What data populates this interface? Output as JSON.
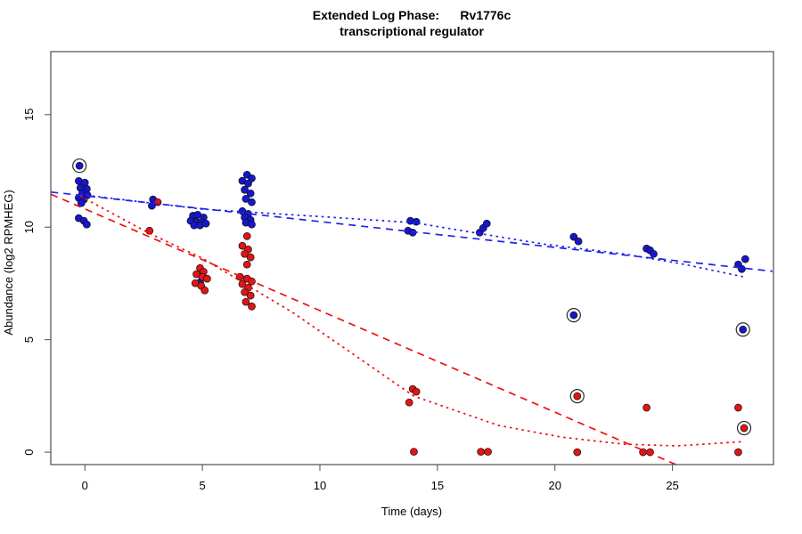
{
  "title": {
    "line1": "Extended Log Phase:      Rv1776c",
    "line2": "transcriptional regulator"
  },
  "chart_data": {
    "type": "scatter",
    "title": "Extended Log Phase: Rv1776c transcriptional regulator",
    "xlabel": "Time  (days)",
    "ylabel": "Abundance  (log2 RPMHEG)",
    "xlim": [
      -1.45,
      29.3
    ],
    "ylim": [
      -0.55,
      17.8
    ],
    "x_ticks": [
      0,
      5,
      10,
      15,
      20,
      25
    ],
    "y_ticks": [
      0,
      5,
      10,
      15
    ],
    "grid": false,
    "legend": "none",
    "colors": {
      "blue_point": "#1616cc",
      "red_point": "#e41414",
      "blue_line": "#2222ee",
      "red_line": "#ee1111",
      "outlier_ring": "#2a2a2a",
      "box": "#4d4d4d"
    },
    "series": [
      {
        "name": "blue-points",
        "marker": "filled-circle",
        "color": "#1616cc",
        "points": [
          [
            -0.26,
            12.05
          ],
          [
            0.0,
            11.98
          ],
          [
            -0.19,
            11.74
          ],
          [
            0.08,
            11.7
          ],
          [
            -0.11,
            11.5
          ],
          [
            0.11,
            11.42
          ],
          [
            -0.26,
            11.3
          ],
          [
            -0.04,
            11.23
          ],
          [
            -0.15,
            11.07
          ],
          [
            -0.26,
            10.4
          ],
          [
            -0.04,
            10.28
          ],
          [
            0.08,
            10.12
          ],
          [
            2.9,
            11.23
          ],
          [
            2.85,
            10.95
          ],
          [
            4.6,
            10.51
          ],
          [
            4.8,
            10.55
          ],
          [
            5.05,
            10.43
          ],
          [
            4.5,
            10.28
          ],
          [
            4.75,
            10.24
          ],
          [
            4.95,
            10.2
          ],
          [
            4.65,
            10.08
          ],
          [
            4.9,
            10.08
          ],
          [
            5.15,
            10.16
          ],
          [
            4.9,
            7.55
          ],
          [
            6.9,
            12.33
          ],
          [
            7.1,
            12.17
          ],
          [
            6.7,
            12.06
          ],
          [
            6.95,
            11.94
          ],
          [
            6.8,
            11.66
          ],
          [
            7.05,
            11.5
          ],
          [
            6.85,
            11.26
          ],
          [
            7.1,
            11.11
          ],
          [
            6.7,
            10.71
          ],
          [
            6.95,
            10.59
          ],
          [
            6.8,
            10.43
          ],
          [
            7.05,
            10.32
          ],
          [
            6.85,
            10.2
          ],
          [
            7.1,
            10.12
          ],
          [
            13.85,
            10.28
          ],
          [
            14.1,
            10.24
          ],
          [
            13.75,
            9.84
          ],
          [
            13.95,
            9.76
          ],
          [
            16.8,
            9.76
          ],
          [
            16.95,
            9.96
          ],
          [
            17.1,
            10.16
          ],
          [
            20.8,
            9.57
          ],
          [
            21.0,
            9.37
          ],
          [
            23.9,
            9.05
          ],
          [
            24.05,
            8.97
          ],
          [
            24.2,
            8.81
          ],
          [
            28.1,
            8.58
          ],
          [
            27.8,
            8.34
          ],
          [
            27.95,
            8.14
          ]
        ]
      },
      {
        "name": "blue-circled-outliers",
        "marker": "circled-point",
        "color": "#1616cc",
        "points": [
          [
            -0.23,
            12.73
          ],
          [
            20.8,
            6.09
          ],
          [
            28.0,
            5.45
          ]
        ]
      },
      {
        "name": "red-points",
        "marker": "filled-circle",
        "color": "#e41414",
        "points": [
          [
            3.1,
            11.11
          ],
          [
            2.75,
            9.84
          ],
          [
            4.9,
            8.18
          ],
          [
            5.05,
            8.02
          ],
          [
            4.75,
            7.91
          ],
          [
            5.0,
            7.79
          ],
          [
            5.2,
            7.71
          ],
          [
            4.7,
            7.51
          ],
          [
            4.95,
            7.39
          ],
          [
            5.1,
            7.19
          ],
          [
            6.9,
            9.6
          ],
          [
            6.7,
            9.17
          ],
          [
            6.95,
            9.01
          ],
          [
            6.8,
            8.81
          ],
          [
            7.05,
            8.66
          ],
          [
            6.9,
            8.34
          ],
          [
            6.6,
            7.79
          ],
          [
            6.9,
            7.71
          ],
          [
            7.1,
            7.59
          ],
          [
            6.7,
            7.47
          ],
          [
            6.95,
            7.31
          ],
          [
            6.8,
            7.11
          ],
          [
            7.05,
            6.96
          ],
          [
            6.85,
            6.68
          ],
          [
            7.1,
            6.48
          ],
          [
            13.95,
            2.81
          ],
          [
            14.1,
            2.69
          ],
          [
            13.8,
            2.21
          ],
          [
            14.0,
            0.02
          ],
          [
            16.85,
            0.02
          ],
          [
            17.15,
            0.02
          ],
          [
            20.95,
            0.0
          ],
          [
            23.9,
            1.98
          ],
          [
            23.75,
            0.0
          ],
          [
            24.05,
            0.0
          ],
          [
            27.8,
            1.98
          ],
          [
            27.8,
            0.0
          ]
        ]
      },
      {
        "name": "red-circled-outliers",
        "marker": "circled-point",
        "color": "#e41414",
        "points": [
          [
            20.95,
            2.49
          ],
          [
            28.05,
            1.07
          ]
        ]
      }
    ],
    "lines": [
      {
        "name": "blue-dashed-linear-fit",
        "style": "dashed",
        "color": "#2222ee",
        "points": [
          [
            -1.44,
            11.56
          ],
          [
            29.26,
            8.04
          ]
        ]
      },
      {
        "name": "blue-dotted-loess-fit",
        "style": "dotted",
        "color": "#2222ee",
        "points": [
          [
            -0.2,
            11.45
          ],
          [
            5,
            10.8
          ],
          [
            10,
            10.47
          ],
          [
            14,
            10.2
          ],
          [
            19.5,
            9.25
          ],
          [
            23,
            8.8
          ],
          [
            25.5,
            8.35
          ],
          [
            28,
            7.8
          ]
        ]
      },
      {
        "name": "red-dashed-linear-fit",
        "style": "dashed",
        "color": "#ee1111",
        "points": [
          [
            -1.44,
            11.46
          ],
          [
            25.6,
            -0.75
          ]
        ]
      },
      {
        "name": "red-dotted-loess-fit",
        "style": "dotted",
        "color": "#ee1111",
        "points": [
          [
            -0.2,
            11.38
          ],
          [
            2.75,
            9.72
          ],
          [
            5,
            8.62
          ],
          [
            8.9,
            6.17
          ],
          [
            14,
            2.49
          ],
          [
            17.6,
            1.19
          ],
          [
            20.3,
            0.67
          ],
          [
            22.9,
            0.36
          ],
          [
            25.2,
            0.28
          ],
          [
            28,
            0.47
          ]
        ]
      }
    ]
  }
}
